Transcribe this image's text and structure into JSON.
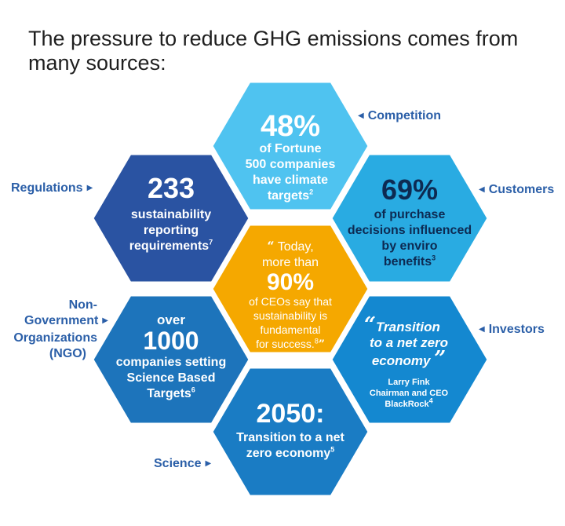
{
  "title": "The pressure to reduce GHG emissions comes from many sources:",
  "colors": {
    "competition": "#4fc3f0",
    "customers": "#29abe2",
    "regulations": "#2a53a2",
    "center": "#f5a800",
    "ngo": "#1d74bb",
    "investors": "#1488d0",
    "science": "#1a7cc4",
    "label": "#2b5fa8"
  },
  "labels": {
    "competition": "Competition",
    "customers": "Customers",
    "regulations": "Regulations",
    "ngo_line1": "Non-",
    "ngo_line2": "Government",
    "ngo_line3": "Organizations",
    "ngo_line4": "(NGO)",
    "investors": "Investors",
    "science": "Science"
  },
  "hexes": {
    "competition": {
      "big": "48%",
      "line1": "of Fortune",
      "line2": "500 companies",
      "line3": "have climate",
      "line4": "targets",
      "ref": "2"
    },
    "customers": {
      "big": "69%",
      "line1": "of purchase",
      "line2": "decisions influenced",
      "line3": "by enviro",
      "line4": "benefits",
      "ref": "3"
    },
    "regulations": {
      "big": "233",
      "line1": "sustainability",
      "line2": "reporting",
      "line3": "requirements",
      "ref": "7"
    },
    "center": {
      "open_quote": "“",
      "pre1": "Today,",
      "pre2": "more than",
      "big": "90%",
      "line1": "of CEOs say that",
      "line2": "sustainability is",
      "line3": "fundamental",
      "line4": "for success.",
      "ref": "8",
      "close_quote": "”"
    },
    "ngo": {
      "pre": "over",
      "big": "1000",
      "line1": "companies setting",
      "line2": "Science Based",
      "line3": "Targets",
      "ref": "6"
    },
    "investors": {
      "open_quote": "“",
      "line1": "Transition",
      "line2": "to a net zero",
      "line3": "economy",
      "close_quote": "”",
      "attr1": "Larry Fink",
      "attr2": "Chairman and CEO",
      "attr3": "BlackRock",
      "ref": "4"
    },
    "science": {
      "big": "2050:",
      "line1": "Transition to a net",
      "line2": "zero economy",
      "ref": "5"
    }
  }
}
